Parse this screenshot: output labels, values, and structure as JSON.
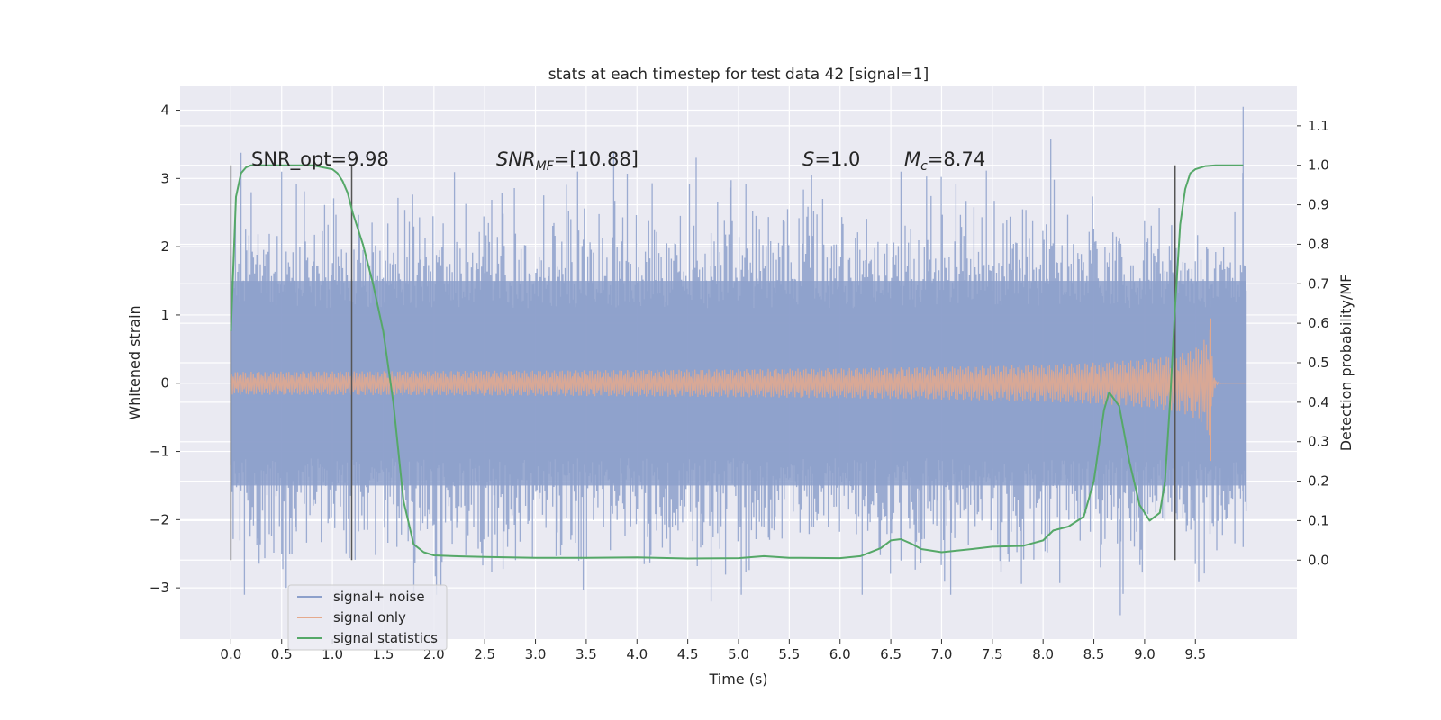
{
  "chart_data": {
    "type": "line",
    "title": "stats at each timestep for test data 42 [signal=1]",
    "xlabel": "Time (s)",
    "ylabel_left": "Whitened strain",
    "ylabel_right": "Detection probability/MF",
    "xlim": [
      -0.5,
      10.5
    ],
    "ylim_left": [
      -3.75,
      4.35
    ],
    "ylim_right": [
      -0.2,
      1.2
    ],
    "xticks": [
      "0.0",
      "0.5",
      "1.0",
      "1.5",
      "2.0",
      "2.5",
      "3.0",
      "3.5",
      "4.0",
      "4.5",
      "5.0",
      "5.5",
      "6.0",
      "6.5",
      "7.0",
      "7.5",
      "8.0",
      "8.5",
      "9.0",
      "9.5"
    ],
    "xtick_values": [
      0,
      0.5,
      1,
      1.5,
      2,
      2.5,
      3,
      3.5,
      4,
      4.5,
      5,
      5.5,
      6,
      6.5,
      7,
      7.5,
      8,
      8.5,
      9,
      9.5
    ],
    "yticks_left": [
      "−3",
      "−2",
      "−1",
      "0",
      "1",
      "2",
      "3",
      "4"
    ],
    "ytick_values_left": [
      -3,
      -2,
      -1,
      0,
      1,
      2,
      3,
      4
    ],
    "yticks_right": [
      "0.0",
      "0.1",
      "0.2",
      "0.3",
      "0.4",
      "0.5",
      "0.6",
      "0.7",
      "0.8",
      "0.9",
      "1.0",
      "1.1"
    ],
    "ytick_values_right": [
      0,
      0.1,
      0.2,
      0.3,
      0.4,
      0.5,
      0.6,
      0.7,
      0.8,
      0.9,
      1.0,
      1.1
    ],
    "grid": true,
    "legend_position": "lower-left",
    "annotations": {
      "snr_opt": "SNR_opt=9.98",
      "snr_mf_base": "SNR",
      "snr_mf_sub": "MF",
      "snr_mf_value": "=[10.88]",
      "s_symbol": "S",
      "s_value": "=1.0",
      "mc_symbol": "M",
      "mc_sub": "c",
      "mc_value": "=8.74"
    },
    "vertical_lines_x": [
      0.0,
      1.19,
      9.3
    ],
    "series": [
      {
        "name": "signal+ noise",
        "axis": "left",
        "color": "#8da0cb",
        "description_envelope": {
          "x_start": 0.0,
          "x_end": 10.0,
          "typical_low": -1.5,
          "typical_high": 1.5,
          "max": 4.05,
          "min": -3.4
        }
      },
      {
        "name": "signal only",
        "axis": "left",
        "color": "#e5a98c",
        "chirp": {
          "x_start": 0.0,
          "x_merger": 9.65,
          "x_end": 10.0,
          "peak_amplitude": 0.95
        }
      },
      {
        "name": "signal statistics",
        "axis": "right",
        "color": "#55a868",
        "x": [
          0.0,
          0.05,
          0.1,
          0.15,
          0.2,
          0.3,
          0.4,
          0.5,
          0.6,
          0.7,
          0.8,
          0.9,
          1.0,
          1.05,
          1.1,
          1.15,
          1.2,
          1.3,
          1.4,
          1.5,
          1.6,
          1.7,
          1.8,
          1.9,
          2.0,
          2.2,
          2.5,
          3.0,
          3.5,
          4.0,
          4.5,
          5.0,
          5.25,
          5.5,
          6.0,
          6.2,
          6.4,
          6.5,
          6.6,
          6.7,
          6.8,
          7.0,
          7.3,
          7.5,
          7.8,
          8.0,
          8.1,
          8.25,
          8.4,
          8.5,
          8.6,
          8.65,
          8.75,
          8.85,
          8.95,
          9.05,
          9.15,
          9.2,
          9.25,
          9.3,
          9.35,
          9.4,
          9.45,
          9.5,
          9.6,
          9.7,
          9.8,
          9.9,
          9.97
        ],
        "y": [
          0.58,
          0.92,
          0.98,
          0.995,
          1.0,
          1.0,
          1.0,
          1.0,
          1.0,
          1.0,
          1.0,
          0.995,
          0.99,
          0.98,
          0.96,
          0.93,
          0.88,
          0.8,
          0.7,
          0.58,
          0.4,
          0.15,
          0.04,
          0.02,
          0.012,
          0.01,
          0.008,
          0.006,
          0.006,
          0.007,
          0.004,
          0.005,
          0.01,
          0.006,
          0.005,
          0.01,
          0.03,
          0.05,
          0.053,
          0.042,
          0.028,
          0.02,
          0.028,
          0.034,
          0.036,
          0.05,
          0.075,
          0.085,
          0.11,
          0.2,
          0.38,
          0.425,
          0.39,
          0.25,
          0.14,
          0.1,
          0.12,
          0.2,
          0.4,
          0.64,
          0.85,
          0.94,
          0.98,
          0.99,
          0.998,
          1.0,
          1.0,
          1.0,
          1.0
        ]
      }
    ]
  }
}
